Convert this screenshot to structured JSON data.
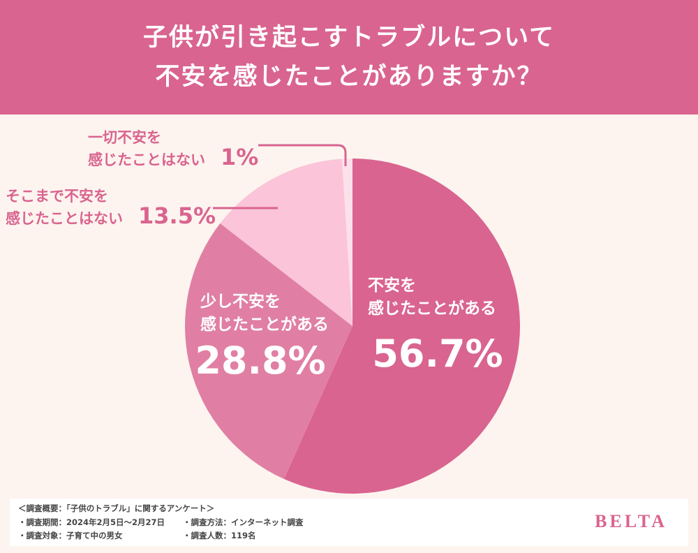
{
  "header": {
    "title_line1": "子供が引き起こすトラブルについて",
    "title_line2": "不安を感じたことがありますか？"
  },
  "chart_data": {
    "type": "pie",
    "title": "子供が引き起こすトラブルについて不安を感じたことがありますか？",
    "slices": [
      {
        "label_lines": [
          "不安を",
          "感じたことがある"
        ],
        "value": 56.7,
        "value_label": "56.7%",
        "color": "#d9648f"
      },
      {
        "label_lines": [
          "少し不安を",
          "感じたことがある"
        ],
        "value": 28.8,
        "value_label": "28.8%",
        "color": "#e07fa3"
      },
      {
        "label_lines": [
          "そこまで不安を",
          "感じたことはない"
        ],
        "value": 13.5,
        "value_label": "13.5%",
        "color": "#fbc4d8"
      },
      {
        "label_lines": [
          "一切不安を",
          "感じたことはない"
        ],
        "value": 1,
        "value_label": "1%",
        "color": "#fde1ea"
      }
    ]
  },
  "footer": {
    "summary": "＜調査概要：「子供のトラブル」に関するアンケート＞",
    "period": "・調査期間：2024年2月5日〜2月27日",
    "method": "・調査方法：インターネット調査",
    "target": "・調査対象：子育て中の男女",
    "count": "・調査人数：119名",
    "brand": "BELTA"
  }
}
